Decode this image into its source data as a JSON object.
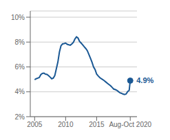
{
  "chart_data": {
    "type": "line",
    "x": [
      2005.0,
      2005.25,
      2005.5,
      2005.75,
      2006.0,
      2006.25,
      2006.5,
      2006.75,
      2007.0,
      2007.25,
      2007.5,
      2007.75,
      2008.0,
      2008.25,
      2008.5,
      2008.75,
      2009.0,
      2009.25,
      2009.5,
      2009.75,
      2010.0,
      2010.25,
      2010.5,
      2010.75,
      2011.0,
      2011.25,
      2011.5,
      2011.75,
      2012.0,
      2012.25,
      2012.5,
      2012.75,
      2013.0,
      2013.25,
      2013.5,
      2013.75,
      2014.0,
      2014.25,
      2014.5,
      2014.75,
      2015.0,
      2015.25,
      2015.5,
      2015.75,
      2016.0,
      2016.25,
      2016.5,
      2016.75,
      2017.0,
      2017.25,
      2017.5,
      2017.75,
      2018.0,
      2018.25,
      2018.5,
      2018.75,
      2019.0,
      2019.25,
      2019.5,
      2019.75,
      2020.0,
      2020.25,
      2020.417
    ],
    "values": [
      4.98,
      5.05,
      5.1,
      5.15,
      5.38,
      5.48,
      5.5,
      5.42,
      5.4,
      5.3,
      5.18,
      5.05,
      5.1,
      5.3,
      5.85,
      6.4,
      7.2,
      7.7,
      7.85,
      7.88,
      7.92,
      7.82,
      7.78,
      7.75,
      7.85,
      7.98,
      8.25,
      8.42,
      8.32,
      8.05,
      7.92,
      7.78,
      7.62,
      7.48,
      7.3,
      7.0,
      6.7,
      6.38,
      6.0,
      5.78,
      5.42,
      5.28,
      5.15,
      5.05,
      4.98,
      4.88,
      4.78,
      4.68,
      4.58,
      4.48,
      4.35,
      4.22,
      4.18,
      4.12,
      4.02,
      3.92,
      3.88,
      3.82,
      3.78,
      3.82,
      4.02,
      4.12,
      4.9
    ],
    "color": "#1a5894",
    "xlim": [
      2004.3,
      2021.5
    ],
    "xticks": [
      2005,
      2010,
      2015,
      {
        "value": 2020.417,
        "label": "Aug-Oct 2020"
      }
    ],
    "ylim": [
      2,
      10.5
    ],
    "yticks": [
      {
        "value": 2,
        "label": "2%"
      },
      {
        "value": 4,
        "label": "4%"
      },
      {
        "value": 6,
        "label": "6%"
      },
      {
        "value": 8,
        "label": "8%"
      },
      {
        "value": 10,
        "label": "10%"
      }
    ],
    "grid": "y",
    "annotations": [
      {
        "text": "4.9%",
        "x": 2020.417,
        "y": 4.9,
        "color": "#1a5894"
      }
    ]
  }
}
